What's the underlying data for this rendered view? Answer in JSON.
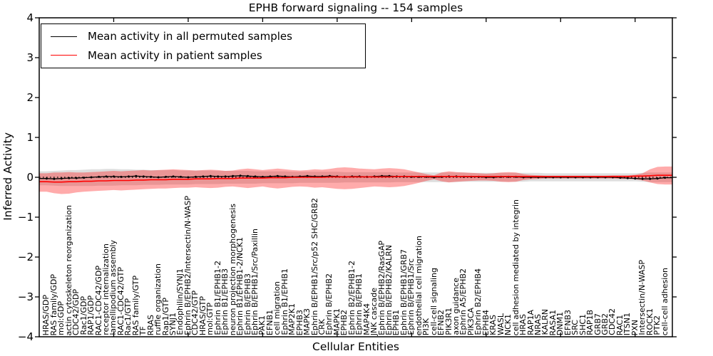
{
  "chart_data": {
    "type": "line",
    "title": "EPHB forward signaling -- 154 samples",
    "xlabel": "Cellular Entities",
    "ylabel": "Inferred Activity",
    "ylim": [
      -4,
      4
    ],
    "ytick_labels": [
      "4",
      "3",
      "2",
      "1",
      "0",
      "−1",
      "−2",
      "−3",
      "−4"
    ],
    "ytick_values": [
      4,
      3,
      2,
      1,
      0,
      -1,
      -2,
      -3,
      -4
    ],
    "grid": false,
    "legend_position": "upper left",
    "zero_line": 0,
    "frame_color": "#000000",
    "categories": [
      "HRAS/GDP",
      "RAS family/GDP",
      "mol:GDP",
      "actin cytoskeleton reorganization",
      "CDC42/GDP",
      "Rac1/GDP",
      "RAP1/GDP",
      "RAC1-CDC42/GDP",
      "receptor internalization",
      "lamellipodium assembly",
      "RAC1-CDC42/GTP",
      "Rac1/GTP",
      "RAS family/GTP",
      "TF",
      "RRAS",
      "ruffle organization",
      "Rap1/GTP",
      "SYNJ1",
      "Endophilin/SYNJ1",
      "Ephrin B/EPHB2/Intersectin/N-WASP",
      "CDC42/GTP",
      "HRAS/GTP",
      "mol:GTP",
      "Ephrin B1/EPHB1-2",
      "Ephrin B1/EPHB3",
      "neuron projection morphogenesis",
      "Ephrin B1/EPHB1-2/NCK1",
      "Ephrin B/EPHB3",
      "Ephrin B/EPHB1/Src/Paxillin",
      "PAK1",
      "EFNB1",
      "cell migration",
      "Ephrin B1/EPHB1",
      "MAP2K1",
      "EPHB3",
      "MAPK3",
      "Ephrin B/EPHB1/Src/p52 SHC/GRB2",
      "CRK",
      "Ephrin B/EPHB2",
      "MAPK1",
      "EPHB2",
      "Ephrin B2/EPHB1-2",
      "Ephrin B/EPHB1",
      "MAP4K4",
      "JNK cascade",
      "Ephrin B/EPHB2/RasGAP",
      "Ephrin B/EPHB2/KALRN",
      "EPHB1",
      "Ephrin B/EPHB1/GRB7",
      "Ephrin B/EPHB1/Src",
      "endothelial cell migration",
      "PI3K",
      "cell-cell signaling",
      "EFNB2",
      "PIK3R1",
      "axon guidance",
      "Ephrin A5/EPHB2",
      "PIK3CA",
      "Ephrin B2/EPHB4",
      "EPHB4",
      "KRAS",
      "WASL",
      "NCK1",
      "cell adhesion mediated by integrin",
      "HRAS",
      "RAP1A",
      "NRAS",
      "KALRN",
      "RASA1",
      "DNM1",
      "EFNB3",
      "SRC",
      "SHC1",
      "RAP1B",
      "GRB7",
      "GRB2",
      "CDC42",
      "RAC1",
      "ITSN1",
      "PXN",
      "Intersectin/N-WASP",
      "ROCK1",
      "PTK2",
      "cell-cell adhesion"
    ],
    "series": [
      {
        "name": "Mean activity in all permuted samples",
        "color": "#000000",
        "values": [
          -0.03,
          -0.04,
          -0.03,
          -0.02,
          -0.02,
          -0.01,
          0.0,
          0.01,
          0.02,
          0.02,
          0.01,
          0.02,
          0.03,
          0.02,
          0.01,
          0.0,
          0.01,
          0.02,
          0.01,
          0.0,
          0.01,
          0.02,
          0.03,
          0.02,
          0.02,
          0.03,
          0.04,
          0.03,
          0.02,
          0.01,
          0.02,
          0.03,
          0.02,
          0.01,
          0.02,
          0.03,
          0.02,
          0.02,
          0.03,
          0.02,
          0.01,
          0.02,
          0.02,
          0.01,
          0.02,
          0.03,
          0.03,
          0.02,
          0.02,
          0.01,
          0.01,
          0.01,
          0.0,
          0.01,
          0.02,
          0.02,
          0.01,
          0.01,
          0.01,
          0.0,
          0.0,
          0.01,
          0.01,
          0.01,
          0.0,
          0.0,
          0.0,
          0.0,
          0.0,
          0.0,
          0.0,
          0.0,
          0.0,
          0.0,
          0.0,
          0.0,
          0.0,
          -0.01,
          -0.02,
          -0.03,
          -0.04,
          -0.04,
          -0.03,
          -0.01
        ]
      },
      {
        "name": "Mean activity in patient samples",
        "color": "#ff0000",
        "values": [
          -0.11,
          -0.12,
          -0.12,
          -0.11,
          -0.11,
          -0.1,
          -0.1,
          -0.09,
          -0.09,
          -0.08,
          -0.08,
          -0.08,
          -0.07,
          -0.07,
          -0.06,
          -0.06,
          -0.06,
          -0.05,
          -0.05,
          -0.05,
          -0.04,
          -0.04,
          -0.04,
          -0.03,
          -0.03,
          -0.03,
          -0.02,
          -0.02,
          -0.02,
          -0.02,
          -0.01,
          -0.01,
          -0.01,
          0.0,
          0.0,
          0.0,
          0.0,
          0.0,
          0.01,
          0.01,
          0.01,
          0.01,
          0.01,
          0.01,
          0.01,
          0.01,
          0.01,
          0.02,
          0.02,
          0.02,
          0.02,
          0.02,
          0.02,
          0.02,
          0.02,
          0.02,
          0.02,
          0.02,
          0.02,
          0.02,
          0.02,
          0.02,
          0.02,
          0.02,
          0.02,
          0.02,
          0.02,
          0.02,
          0.02,
          0.02,
          0.02,
          0.02,
          0.02,
          0.02,
          0.02,
          0.02,
          0.02,
          0.02,
          0.02,
          0.03,
          0.03,
          0.04,
          0.05,
          0.05
        ]
      }
    ],
    "bands": [
      {
        "name": "permuted samples range",
        "color": "rgba(0,0,0,0.13)",
        "upper": [
          0.15,
          0.16,
          0.17,
          0.18,
          0.18,
          0.19,
          0.2,
          0.2,
          0.21,
          0.21,
          0.2,
          0.2,
          0.19,
          0.19,
          0.18,
          0.18,
          0.18,
          0.18,
          0.17,
          0.17,
          0.17,
          0.17,
          0.17,
          0.16,
          0.16,
          0.16,
          0.16,
          0.16,
          0.15,
          0.15,
          0.15,
          0.15,
          0.15,
          0.14,
          0.14,
          0.14,
          0.14,
          0.14,
          0.14,
          0.14,
          0.13,
          0.13,
          0.13,
          0.13,
          0.13,
          0.13,
          0.13,
          0.12,
          0.12,
          0.12,
          0.12,
          0.12,
          0.12,
          0.12,
          0.12,
          0.12,
          0.12,
          0.11,
          0.11,
          0.11,
          0.11,
          0.11,
          0.11,
          0.11,
          0.11,
          0.11,
          0.11,
          0.1,
          0.1,
          0.1,
          0.1,
          0.1,
          0.1,
          0.1,
          0.1,
          0.1,
          0.1,
          0.1,
          0.1,
          0.1,
          0.11,
          0.12,
          0.12,
          0.12
        ],
        "lower": [
          -0.2,
          -0.21,
          -0.22,
          -0.22,
          -0.22,
          -0.22,
          -0.22,
          -0.21,
          -0.21,
          -0.21,
          -0.2,
          -0.2,
          -0.2,
          -0.19,
          -0.19,
          -0.19,
          -0.18,
          -0.18,
          -0.18,
          -0.18,
          -0.17,
          -0.17,
          -0.17,
          -0.17,
          -0.16,
          -0.16,
          -0.16,
          -0.16,
          -0.16,
          -0.15,
          -0.15,
          -0.15,
          -0.15,
          -0.15,
          -0.14,
          -0.14,
          -0.14,
          -0.14,
          -0.14,
          -0.14,
          -0.13,
          -0.13,
          -0.13,
          -0.13,
          -0.13,
          -0.13,
          -0.13,
          -0.12,
          -0.12,
          -0.12,
          -0.12,
          -0.12,
          -0.12,
          -0.12,
          -0.12,
          -0.12,
          -0.11,
          -0.11,
          -0.11,
          -0.11,
          -0.11,
          -0.11,
          -0.11,
          -0.11,
          -0.11,
          -0.1,
          -0.1,
          -0.1,
          -0.1,
          -0.1,
          -0.1,
          -0.1,
          -0.1,
          -0.1,
          -0.1,
          -0.1,
          -0.1,
          -0.1,
          -0.1,
          -0.1,
          -0.11,
          -0.12,
          -0.12,
          -0.12
        ]
      },
      {
        "name": "patient samples range",
        "color": "rgba(255,0,0,0.33)",
        "upper": [
          0.1,
          0.12,
          0.12,
          0.13,
          0.12,
          0.12,
          0.13,
          0.14,
          0.15,
          0.16,
          0.15,
          0.16,
          0.17,
          0.18,
          0.17,
          0.18,
          0.19,
          0.2,
          0.19,
          0.18,
          0.17,
          0.18,
          0.19,
          0.18,
          0.16,
          0.17,
          0.2,
          0.22,
          0.2,
          0.18,
          0.2,
          0.22,
          0.2,
          0.18,
          0.17,
          0.18,
          0.2,
          0.19,
          0.21,
          0.24,
          0.25,
          0.24,
          0.22,
          0.21,
          0.2,
          0.22,
          0.23,
          0.22,
          0.2,
          0.16,
          0.12,
          0.08,
          0.05,
          0.12,
          0.15,
          0.13,
          0.12,
          0.11,
          0.1,
          0.09,
          0.1,
          0.12,
          0.13,
          0.12,
          0.08,
          0.06,
          0.05,
          0.04,
          0.04,
          0.04,
          0.04,
          0.04,
          0.04,
          0.04,
          0.04,
          0.04,
          0.05,
          0.05,
          0.05,
          0.06,
          0.1,
          0.2,
          0.26,
          0.27
        ],
        "lower": [
          -0.36,
          -0.4,
          -0.42,
          -0.41,
          -0.38,
          -0.36,
          -0.35,
          -0.34,
          -0.33,
          -0.32,
          -0.33,
          -0.32,
          -0.31,
          -0.3,
          -0.29,
          -0.28,
          -0.28,
          -0.27,
          -0.26,
          -0.26,
          -0.25,
          -0.26,
          -0.27,
          -0.26,
          -0.24,
          -0.23,
          -0.25,
          -0.27,
          -0.25,
          -0.23,
          -0.26,
          -0.28,
          -0.26,
          -0.24,
          -0.23,
          -0.24,
          -0.26,
          -0.25,
          -0.27,
          -0.29,
          -0.3,
          -0.29,
          -0.27,
          -0.25,
          -0.23,
          -0.24,
          -0.25,
          -0.24,
          -0.22,
          -0.18,
          -0.14,
          -0.09,
          -0.05,
          -0.1,
          -0.13,
          -0.11,
          -0.1,
          -0.09,
          -0.08,
          -0.08,
          -0.09,
          -0.11,
          -0.12,
          -0.11,
          -0.07,
          -0.05,
          -0.04,
          -0.03,
          -0.03,
          -0.03,
          -0.03,
          -0.03,
          -0.03,
          -0.03,
          -0.03,
          -0.03,
          -0.03,
          -0.04,
          -0.04,
          -0.05,
          -0.08,
          -0.13,
          -0.17,
          -0.18
        ]
      }
    ]
  }
}
